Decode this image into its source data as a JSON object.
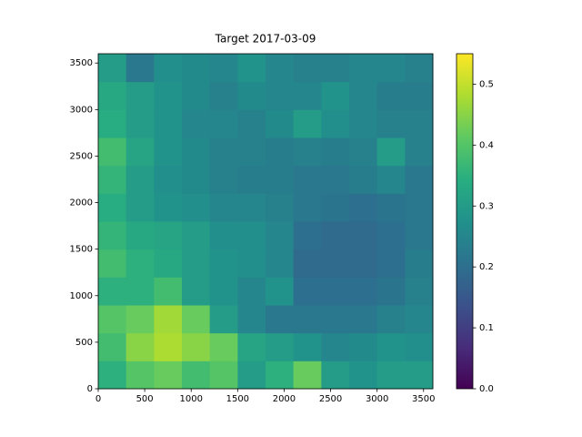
{
  "chart_data": {
    "type": "heatmap",
    "title": "Target 2017-03-09",
    "colormap": "viridis",
    "xlim": [
      0,
      3600
    ],
    "ylim": [
      0,
      3600
    ],
    "xticks": [
      0,
      500,
      1000,
      1500,
      2000,
      2500,
      3000,
      3500
    ],
    "yticks": [
      0,
      500,
      1000,
      1500,
      2000,
      2500,
      3000,
      3500
    ],
    "clim": [
      0,
      0.55
    ],
    "cticks": [
      {
        "value": 0,
        "label": "0.0"
      },
      0.1,
      0.2,
      0.3,
      0.4,
      0.5
    ],
    "z": [
      [
        0.35,
        0.4,
        0.42,
        0.38,
        0.4,
        0.3,
        0.35,
        0.42,
        0.3,
        0.28,
        0.3,
        0.3
      ],
      [
        0.38,
        0.45,
        0.48,
        0.45,
        0.42,
        0.32,
        0.3,
        0.28,
        0.25,
        0.26,
        0.28,
        0.27
      ],
      [
        0.4,
        0.42,
        0.47,
        0.42,
        0.3,
        0.25,
        0.22,
        0.22,
        0.22,
        0.22,
        0.24,
        0.25
      ],
      [
        0.35,
        0.35,
        0.38,
        0.3,
        0.28,
        0.25,
        0.28,
        0.2,
        0.2,
        0.2,
        0.21,
        0.24
      ],
      [
        0.38,
        0.35,
        0.33,
        0.3,
        0.28,
        0.27,
        0.25,
        0.19,
        0.19,
        0.19,
        0.2,
        0.23
      ],
      [
        0.36,
        0.33,
        0.32,
        0.3,
        0.27,
        0.27,
        0.25,
        0.2,
        0.19,
        0.19,
        0.2,
        0.22
      ],
      [
        0.34,
        0.3,
        0.28,
        0.27,
        0.25,
        0.25,
        0.24,
        0.22,
        0.21,
        0.2,
        0.21,
        0.22
      ],
      [
        0.36,
        0.3,
        0.27,
        0.26,
        0.24,
        0.23,
        0.23,
        0.22,
        0.22,
        0.23,
        0.25,
        0.22
      ],
      [
        0.38,
        0.32,
        0.28,
        0.26,
        0.24,
        0.24,
        0.23,
        0.24,
        0.23,
        0.24,
        0.3,
        0.24
      ],
      [
        0.34,
        0.3,
        0.28,
        0.25,
        0.25,
        0.24,
        0.26,
        0.3,
        0.27,
        0.25,
        0.24,
        0.24
      ],
      [
        0.33,
        0.3,
        0.28,
        0.26,
        0.24,
        0.26,
        0.25,
        0.25,
        0.28,
        0.25,
        0.23,
        0.23
      ],
      [
        0.3,
        0.22,
        0.27,
        0.26,
        0.25,
        0.28,
        0.25,
        0.24,
        0.24,
        0.25,
        0.25,
        0.24
      ]
    ]
  }
}
